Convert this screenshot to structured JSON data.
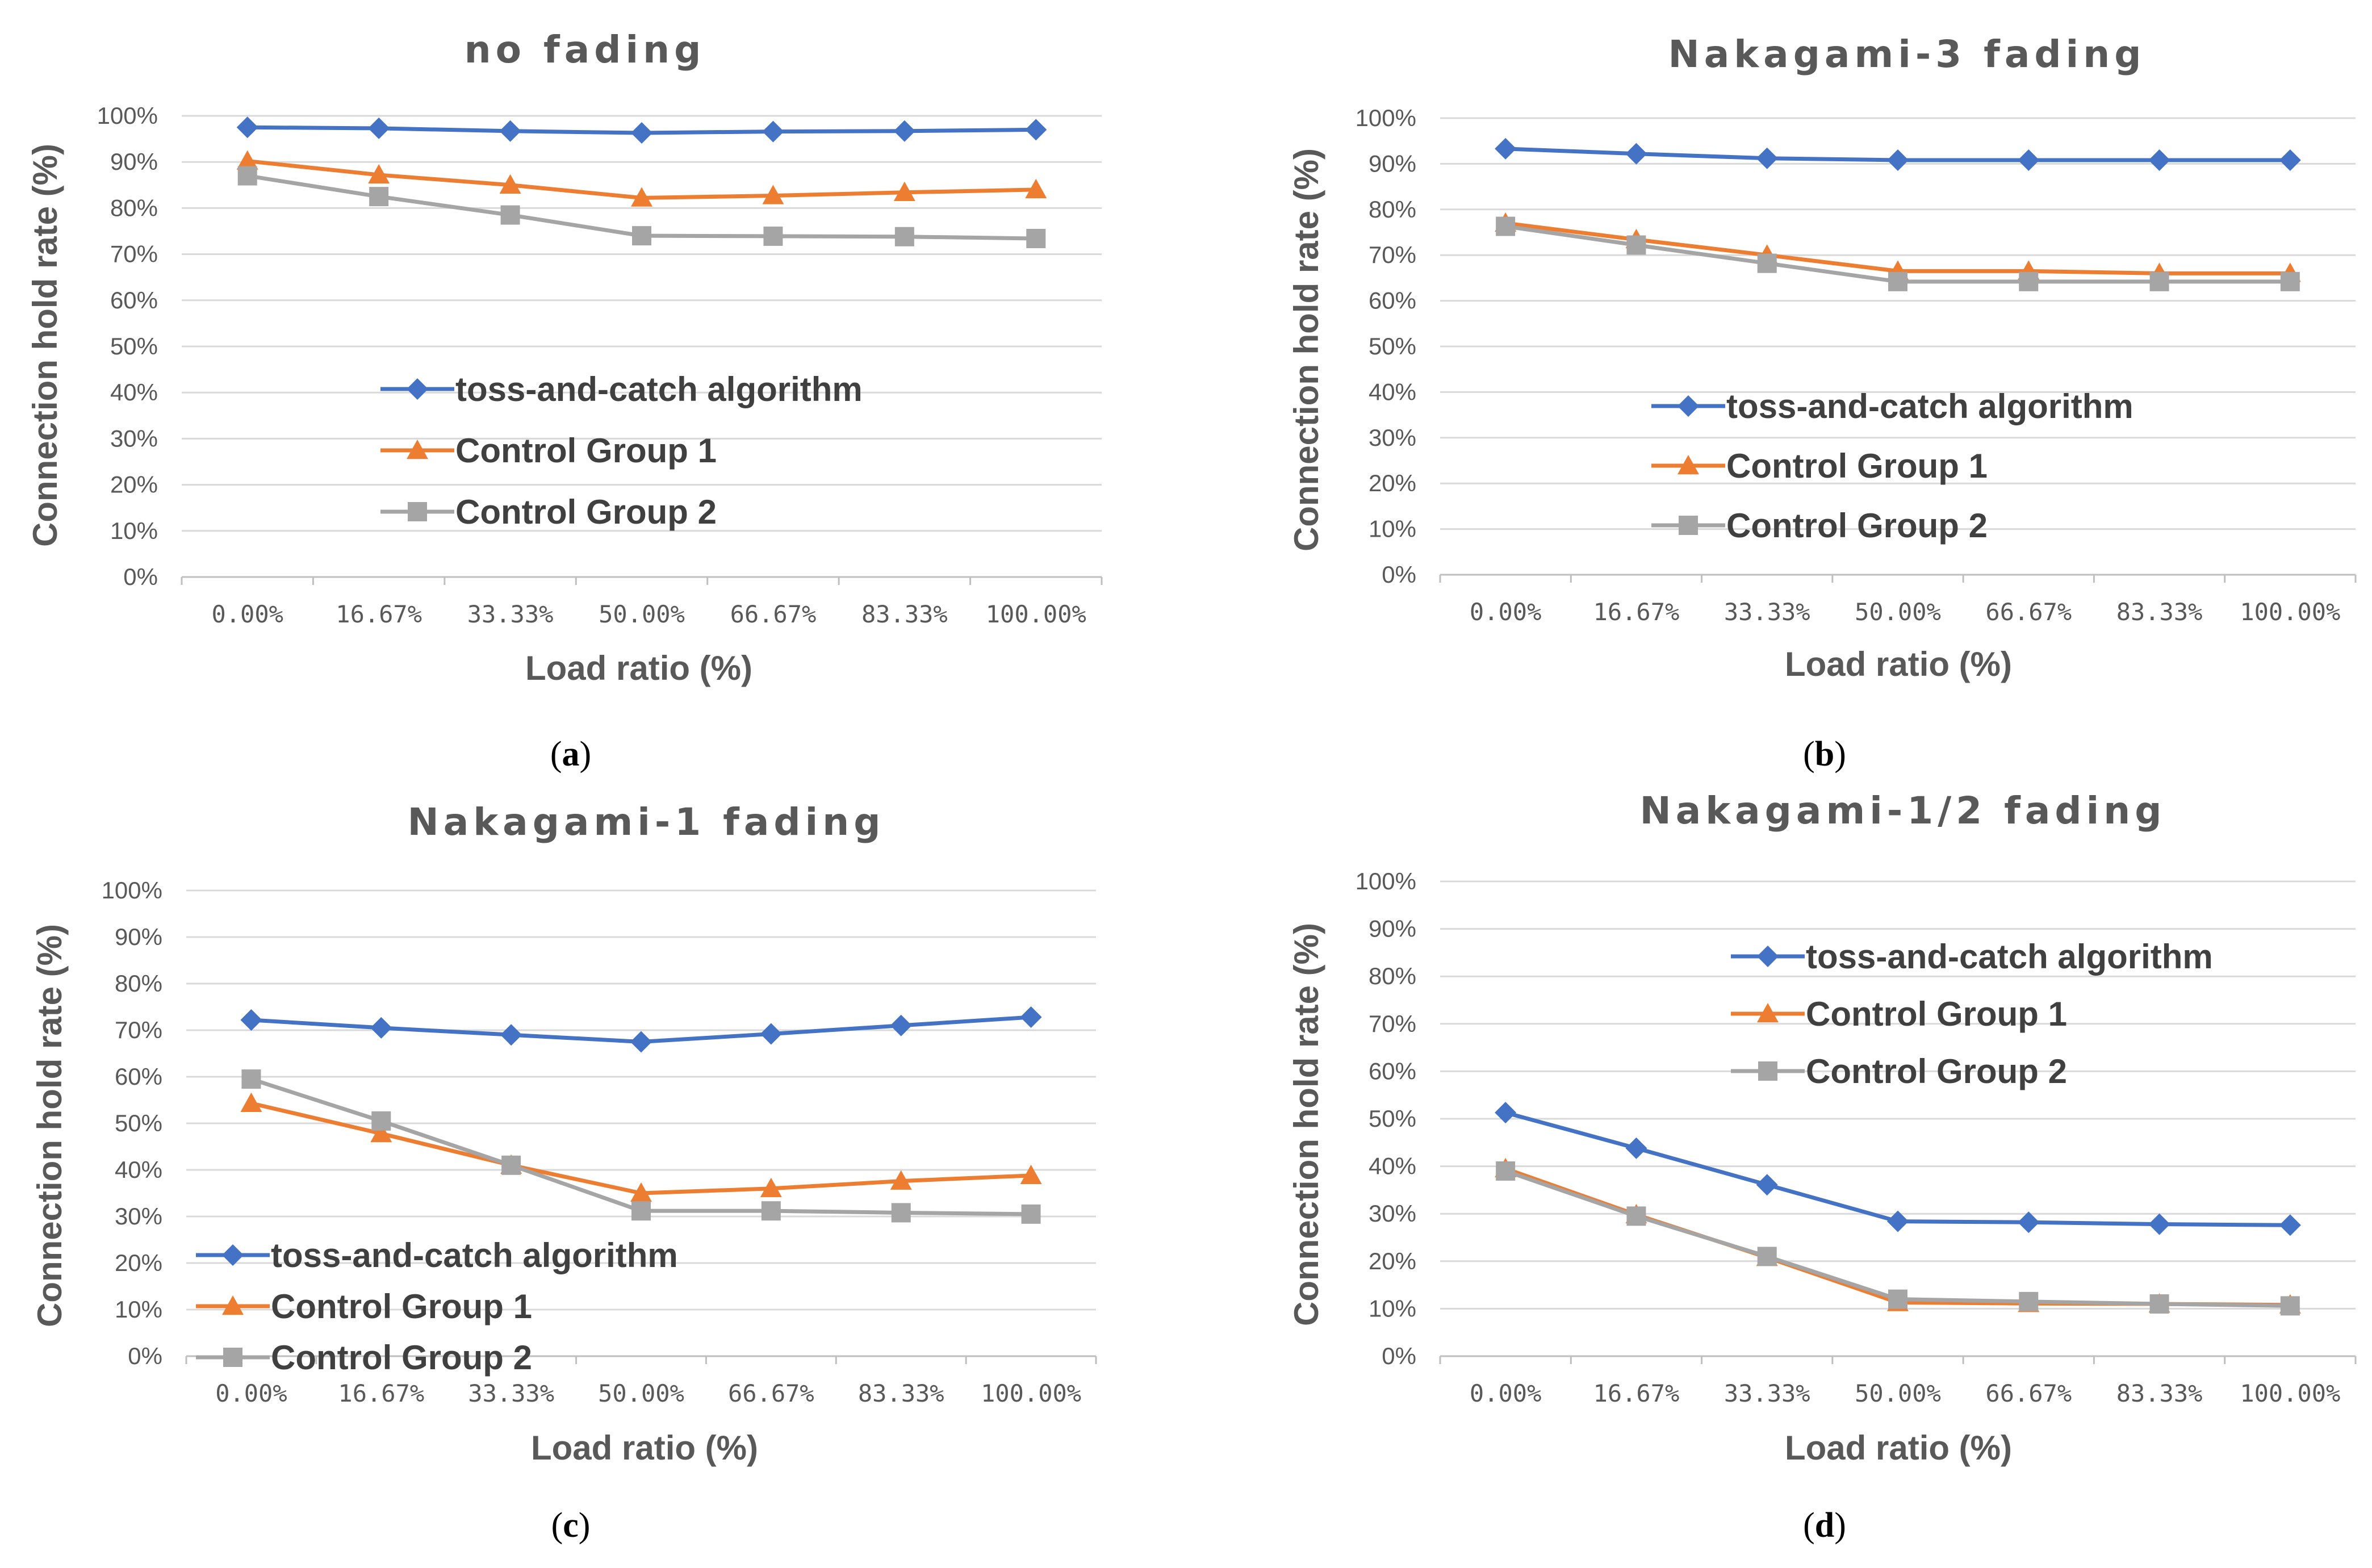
{
  "colors": {
    "series1": "#4472C4",
    "series2": "#ED7D31",
    "series3": "#A5A5A5",
    "grid": "#D9D9D9",
    "text": "#595959"
  },
  "chart_data": [
    {
      "type": "line",
      "title": "no fading",
      "caption": "a",
      "xlabel": "Load ratio (%)",
      "ylabel": "Connection hold rate (%)",
      "categories": [
        "0.00%",
        "16.67%",
        "33.33%",
        "50.00%",
        "66.67%",
        "83.33%",
        "100.00%"
      ],
      "yticks": [
        "0%",
        "10%",
        "20%",
        "30%",
        "40%",
        "50%",
        "60%",
        "70%",
        "80%",
        "90%",
        "100%"
      ],
      "ylim": [
        0,
        100
      ],
      "legend_position": "middle-left",
      "series": [
        {
          "name": "toss-and-catch algorithm",
          "marker": "diamond",
          "values": [
            97.5,
            97.3,
            96.7,
            96.3,
            96.6,
            96.7,
            97
          ]
        },
        {
          "name": "Control Group 1",
          "marker": "triangle",
          "values": [
            90.2,
            87.2,
            85,
            82.2,
            82.7,
            83.4,
            84
          ]
        },
        {
          "name": "Control Group 2",
          "marker": "square",
          "values": [
            87,
            82.5,
            78.5,
            74,
            73.9,
            73.8,
            73.4
          ]
        }
      ]
    },
    {
      "type": "line",
      "title": "Nakagami-3 fading",
      "caption": "b",
      "xlabel": "Load ratio (%)",
      "ylabel": "Connection hold rate (%)",
      "categories": [
        "0.00%",
        "16.67%",
        "33.33%",
        "50.00%",
        "66.67%",
        "83.33%",
        "100.00%"
      ],
      "yticks": [
        "0%",
        "10%",
        "20%",
        "30%",
        "40%",
        "50%",
        "60%",
        "70%",
        "80%",
        "90%",
        "100%"
      ],
      "ylim": [
        0,
        100
      ],
      "legend_position": "middle-left",
      "series": [
        {
          "name": "toss-and-catch algorithm",
          "marker": "diamond",
          "values": [
            93.3,
            92.2,
            91.2,
            90.8,
            90.8,
            90.8,
            90.8
          ]
        },
        {
          "name": "Control Group 1",
          "marker": "triangle",
          "values": [
            77,
            73.4,
            70,
            66.5,
            66.5,
            66,
            66
          ]
        },
        {
          "name": "Control Group 2",
          "marker": "square",
          "values": [
            76.3,
            72.2,
            68.2,
            64.2,
            64.2,
            64.2,
            64.2
          ]
        }
      ]
    },
    {
      "type": "line",
      "title": "Nakagami-1 fading",
      "caption": "c",
      "xlabel": "Load ratio (%)",
      "ylabel": "Connection hold rate (%)",
      "categories": [
        "0.00%",
        "16.67%",
        "33.33%",
        "50.00%",
        "66.67%",
        "83.33%",
        "100.00%"
      ],
      "yticks": [
        "0%",
        "10%",
        "20%",
        "30%",
        "40%",
        "50%",
        "60%",
        "70%",
        "80%",
        "90%",
        "100%"
      ],
      "ylim": [
        0,
        100
      ],
      "legend_position": "bottom-left",
      "series": [
        {
          "name": "toss-and-catch algorithm",
          "marker": "diamond",
          "values": [
            72.2,
            70.5,
            69,
            67.5,
            69.2,
            71,
            72.8
          ]
        },
        {
          "name": "Control Group 1",
          "marker": "triangle",
          "values": [
            54.3,
            47.8,
            41,
            35,
            36,
            37.6,
            38.8
          ]
        },
        {
          "name": "Control Group 2",
          "marker": "square",
          "values": [
            59.5,
            50.5,
            41,
            31.2,
            31.2,
            30.8,
            30.5
          ]
        }
      ]
    },
    {
      "type": "line",
      "title": "Nakagami-1/2 fading",
      "caption": "d",
      "xlabel": "Load ratio (%)",
      "ylabel": "Connection hold rate (%)",
      "categories": [
        "0.00%",
        "16.67%",
        "33.33%",
        "50.00%",
        "66.67%",
        "83.33%",
        "100.00%"
      ],
      "yticks": [
        "0%",
        "10%",
        "20%",
        "30%",
        "40%",
        "50%",
        "60%",
        "70%",
        "80%",
        "90%",
        "100%"
      ],
      "ylim": [
        0,
        100
      ],
      "legend_position": "top-right",
      "series": [
        {
          "name": "toss-and-catch algorithm",
          "marker": "diamond",
          "values": [
            51.3,
            43.8,
            36.1,
            28.4,
            28.2,
            27.8,
            27.6
          ]
        },
        {
          "name": "Control Group 1",
          "marker": "triangle",
          "values": [
            39.5,
            29.8,
            20.8,
            11.3,
            11.1,
            11,
            10.8
          ]
        },
        {
          "name": "Control Group 2",
          "marker": "square",
          "values": [
            39,
            29.5,
            21,
            12,
            11.5,
            11,
            10.6
          ]
        }
      ]
    }
  ]
}
